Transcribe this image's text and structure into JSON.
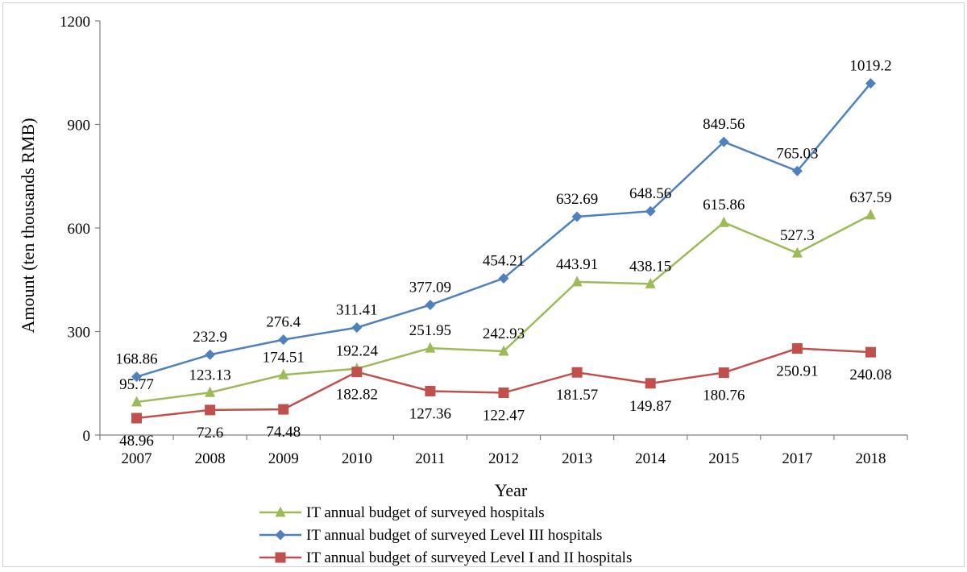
{
  "chart_data": {
    "type": "line",
    "xlabel": "Year",
    "ylabel": "Amount (ten thousands RMB)",
    "ylim": [
      0,
      1200
    ],
    "yticks": [
      0,
      300,
      600,
      900,
      1200
    ],
    "grid": false,
    "legend_position": "bottom-center",
    "categories": [
      "2007",
      "2008",
      "2009",
      "2010",
      "2011",
      "2012",
      "2013",
      "2014",
      "2015",
      "2017",
      "2018"
    ],
    "series": [
      {
        "name": "IT annual budget of surveyed hospitals",
        "color": "#9bbb59",
        "marker": "triangle",
        "values": [
          95.77,
          123.13,
          174.51,
          192.24,
          251.95,
          242.93,
          443.91,
          438.15,
          615.86,
          527.3,
          637.59
        ],
        "labels": [
          "95.77",
          "123.13",
          "174.51",
          "192.24",
          "251.95",
          "242.93",
          "443.91",
          "438.15",
          "615.86",
          "527.3",
          "637.59"
        ]
      },
      {
        "name": "IT annual budget of surveyed Level III hospitals",
        "color": "#4f81bd",
        "marker": "diamond",
        "values": [
          168.86,
          232.9,
          276.4,
          311.41,
          377.09,
          454.21,
          632.69,
          648.56,
          849.56,
          765.03,
          1019.2
        ],
        "labels": [
          "168.86",
          "232.9",
          "276.4",
          "311.41",
          "377.09",
          "454.21",
          "632.69",
          "648.56",
          "849.56",
          "765.03",
          "1019.2"
        ]
      },
      {
        "name": "IT annual budget of surveyed  Level I and II hospitals",
        "color": "#c0504d",
        "marker": "square",
        "values": [
          48.96,
          72.6,
          74.48,
          182.82,
          127.36,
          122.47,
          181.57,
          149.87,
          180.76,
          250.91,
          240.08
        ],
        "labels": [
          "48.96",
          "72.6",
          "74.48",
          "182.82",
          "127.36",
          "122.47",
          "181.57",
          "149.87",
          "180.76",
          "250.91",
          "240.08"
        ]
      }
    ]
  }
}
